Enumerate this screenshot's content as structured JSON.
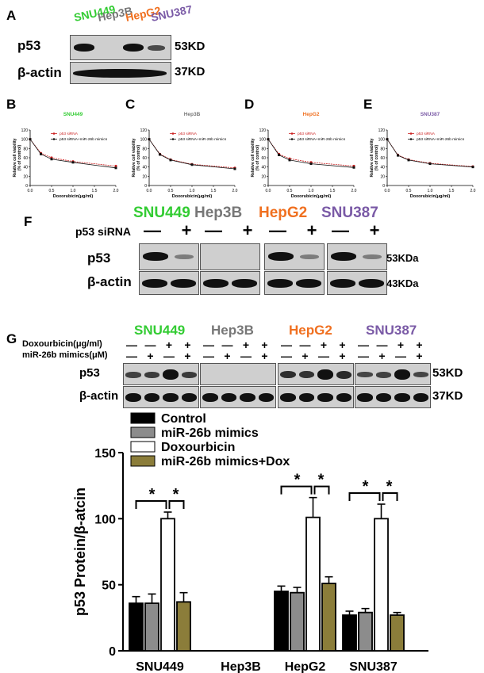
{
  "colors": {
    "SNU449": "#33cc33",
    "Hep3B": "#777777",
    "HepG2": "#f07020",
    "SNU387": "#7a5aa6",
    "siRNA": "#cc2222",
    "mimics": "#111111",
    "bar_control": "#000000",
    "bar_mimics": "#8c8c8c",
    "bar_dox": "#ffffff",
    "bar_combo": "#8b7d3a"
  },
  "panelA": {
    "label": "A",
    "cells": [
      "SNU449",
      "Hep3B",
      "HepG2",
      "SNU387"
    ],
    "rows": [
      {
        "name": "p53",
        "kd": "53KD"
      },
      {
        "name": "β-actin",
        "kd": "37KD"
      }
    ]
  },
  "panelsBE": [
    {
      "label": "B",
      "title": "SNU449",
      "color": "#33cc33"
    },
    {
      "label": "C",
      "title": "Hep3B",
      "color": "#777777"
    },
    {
      "label": "D",
      "title": "HepG2",
      "color": "#f07020"
    },
    {
      "label": "E",
      "title": "SNU387",
      "color": "#7a5aa6"
    }
  ],
  "viability": {
    "ylabel": "Relative cell viability\n(% of control)",
    "xlabel": "Doxorubicin(μg/ml)",
    "yticks": [
      "0",
      "20",
      "40",
      "60",
      "80",
      "100",
      "120"
    ],
    "xticks": [
      "0.0",
      "0.5",
      "1.0",
      "1.5",
      "2.0"
    ],
    "legend": [
      "p53 siRNA",
      "p53 siRNA+miR-26b mimics"
    ]
  },
  "panelF": {
    "label": "F",
    "cells": [
      "SNU449",
      "Hep3B",
      "HepG2",
      "SNU387"
    ],
    "treatment": "p53 siRNA",
    "signs": [
      "—",
      "+"
    ],
    "rows": [
      {
        "name": "p53",
        "kd": "53KDa"
      },
      {
        "name": "β-actin",
        "kd": "43KDa"
      }
    ]
  },
  "panelG": {
    "label": "G",
    "cells": [
      "SNU449",
      "Hep3B",
      "HepG2",
      "SNU387"
    ],
    "treatments": [
      "Doxourbicin(μg/ml)",
      "miR-26b mimics(μM)"
    ],
    "dox_signs": [
      "—",
      "—",
      "+",
      "+"
    ],
    "mim_signs": [
      "—",
      "+",
      "—",
      "+"
    ],
    "rows": [
      {
        "name": "p53",
        "kd": "53KD"
      },
      {
        "name": "β-actin",
        "kd": "37KD"
      }
    ]
  },
  "chart_data": [
    {
      "type": "line",
      "panel": "B",
      "title": "SNU449",
      "xlabel": "Doxorubicin(μg/ml)",
      "ylabel": "Relative cell viability (% of control)",
      "xlim": [
        0,
        2
      ],
      "ylim": [
        0,
        120
      ],
      "x": [
        0,
        0.25,
        0.5,
        1,
        2
      ],
      "series": [
        {
          "name": "p53 siRNA",
          "values": [
            100,
            70,
            60,
            52,
            42
          ]
        },
        {
          "name": "p53 siRNA+miR-26b mimics",
          "values": [
            100,
            68,
            57,
            50,
            38
          ]
        }
      ]
    },
    {
      "type": "line",
      "panel": "C",
      "title": "Hep3B",
      "xlabel": "Doxorubicin(μg/ml)",
      "ylabel": "Relative cell viability (% of control)",
      "xlim": [
        0,
        2
      ],
      "ylim": [
        0,
        120
      ],
      "x": [
        0,
        0.25,
        0.5,
        1,
        2
      ],
      "series": [
        {
          "name": "p53 siRNA",
          "values": [
            100,
            68,
            56,
            46,
            38
          ]
        },
        {
          "name": "p53 siRNA+miR-26b mimics",
          "values": [
            100,
            67,
            55,
            45,
            36
          ]
        }
      ]
    },
    {
      "type": "line",
      "panel": "D",
      "title": "HepG2",
      "xlabel": "Doxorubicin(μg/ml)",
      "ylabel": "Relative cell viability (% of control)",
      "xlim": [
        0,
        2
      ],
      "ylim": [
        0,
        120
      ],
      "x": [
        0,
        0.25,
        0.5,
        1,
        2
      ],
      "series": [
        {
          "name": "p53 siRNA",
          "values": [
            100,
            68,
            58,
            50,
            42
          ]
        },
        {
          "name": "p53 siRNA+miR-26b mimics",
          "values": [
            100,
            66,
            55,
            47,
            39
          ]
        }
      ]
    },
    {
      "type": "line",
      "panel": "E",
      "title": "SNU387",
      "xlabel": "Doxorubicin(μg/ml)",
      "ylabel": "Relative cell viability (% of control)",
      "xlim": [
        0,
        2
      ],
      "ylim": [
        0,
        120
      ],
      "x": [
        0,
        0.25,
        0.5,
        1,
        2
      ],
      "series": [
        {
          "name": "p53 siRNA",
          "values": [
            100,
            66,
            56,
            48,
            41
          ]
        },
        {
          "name": "p53 siRNA+miR-26b mimics",
          "values": [
            100,
            65,
            55,
            47,
            40
          ]
        }
      ]
    },
    {
      "type": "bar",
      "panel": "G",
      "categories": [
        "SNU449",
        "Hep3B",
        "HepG2",
        "SNU387"
      ],
      "ylabel": "p53 Protein/β-atcin",
      "ylim": [
        0,
        150
      ],
      "yticks": [
        "0",
        "50",
        "100",
        "150"
      ],
      "legend": [
        "Control",
        "miR-26b mimics",
        "Doxourbicin",
        "miR-26b mimics+Dox"
      ],
      "series": [
        {
          "name": "Control",
          "values": [
            36,
            0,
            45,
            27
          ],
          "errors": [
            5,
            0,
            4,
            3
          ]
        },
        {
          "name": "miR-26b mimics",
          "values": [
            36,
            0,
            44,
            29
          ],
          "errors": [
            7,
            0,
            4,
            3
          ]
        },
        {
          "name": "Doxourbicin",
          "values": [
            100,
            0,
            101,
            100
          ],
          "errors": [
            5,
            0,
            15,
            11
          ]
        },
        {
          "name": "miR-26b mimics+Dox",
          "values": [
            37,
            0,
            51,
            27
          ],
          "errors": [
            7,
            0,
            5,
            2
          ]
        }
      ],
      "significance": "*"
    }
  ]
}
